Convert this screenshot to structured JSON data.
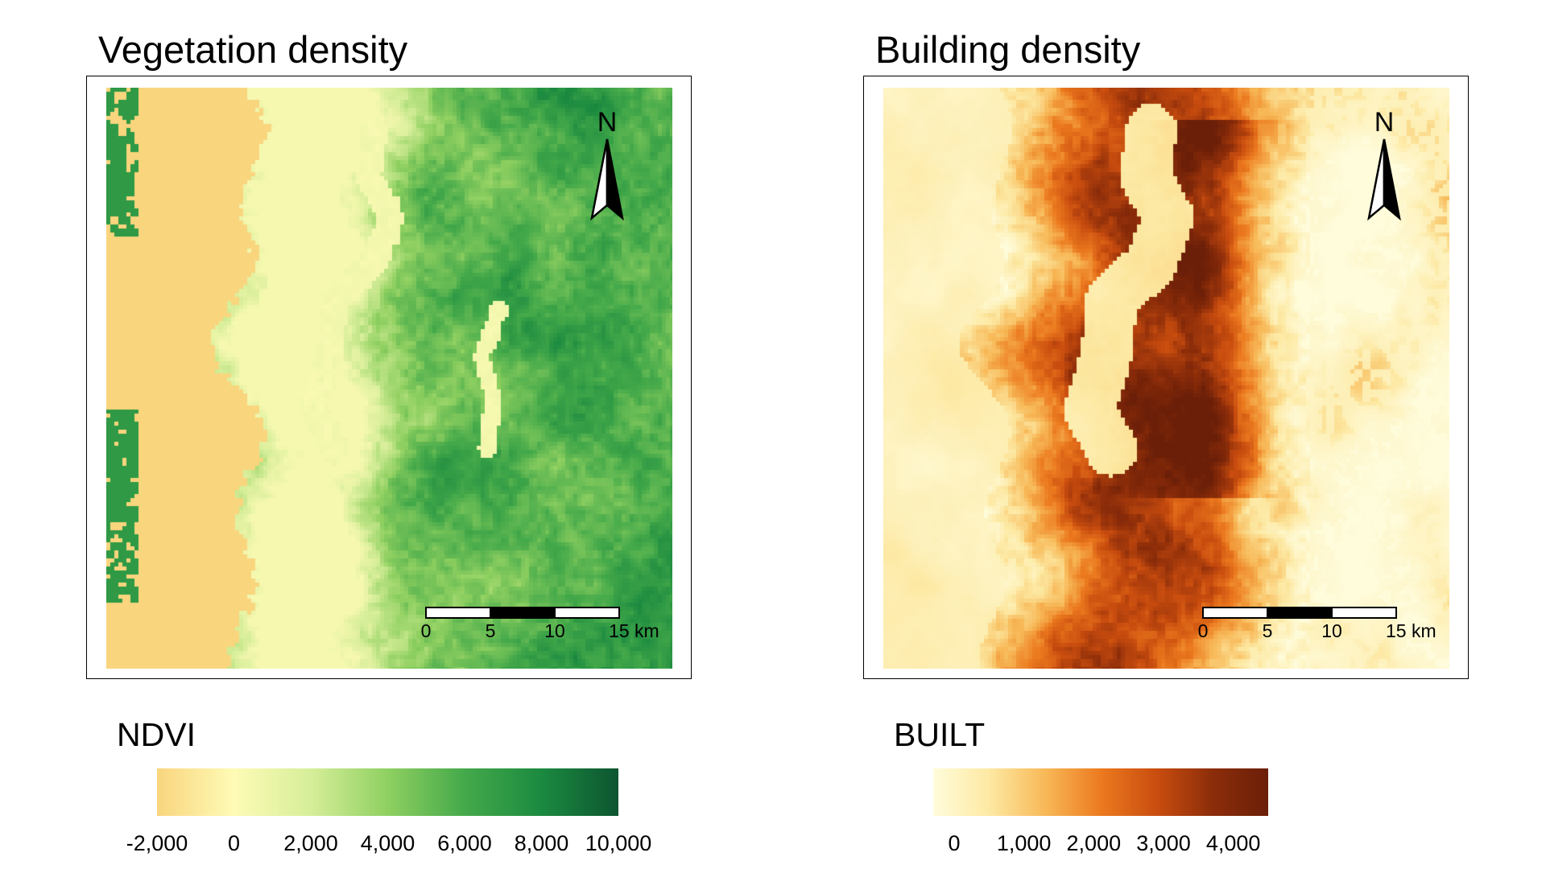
{
  "panels": [
    {
      "title": "Vegetation density",
      "variable": "NDVI",
      "palette": [
        "#f9d57e",
        "#fefbb6",
        "#d6ee99",
        "#8fd061",
        "#44a94a",
        "#1b8a40",
        "#0d5530"
      ],
      "map": {
        "seed": 11,
        "north_label": "N",
        "scale_labels": [
          "0",
          "5",
          "10",
          "15 km"
        ],
        "description_colors": {
          "sea": "#f9d57e",
          "urban_low": "#e6f5a4",
          "forest": "#1f8a40"
        }
      },
      "legend": {
        "ticks": [
          "-2,000",
          "0",
          "2,000",
          "4,000",
          "6,000",
          "8,000",
          "10,000"
        ],
        "range": [
          -2000,
          10000
        ]
      }
    },
    {
      "title": "Building density",
      "variable": "BUILT",
      "palette": [
        "#fffcdb",
        "#fde9a3",
        "#f8b958",
        "#ec7a1f",
        "#c94d0f",
        "#8c2d0a",
        "#6b1f08"
      ],
      "map": {
        "seed": 23,
        "north_label": "N",
        "scale_labels": [
          "0",
          "5",
          "10",
          "15 km"
        ],
        "description_colors": {
          "empty": "#fffcdb",
          "built_high": "#c94d0f"
        }
      },
      "legend": {
        "ticks": [
          "0",
          "1,000",
          "2,000",
          "3,000",
          "4,000"
        ],
        "range": [
          -300,
          4500
        ]
      }
    }
  ]
}
